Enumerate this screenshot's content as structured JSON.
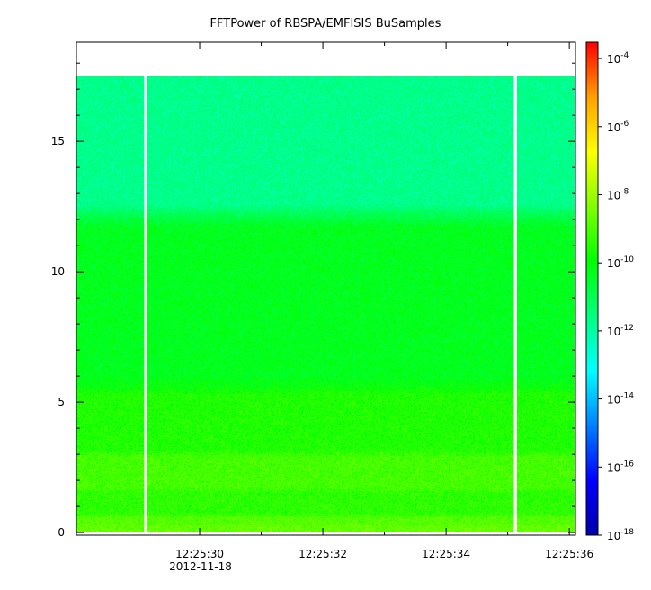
{
  "chart_data": {
    "type": "heatmap",
    "title": "FFTPower of RBSPA/EMFISIS  BuSamples",
    "xlabel": "",
    "ylabel": "",
    "x_axis": {
      "type": "time",
      "start": "12:25:28.0",
      "end": "12:25:36.1",
      "ticks": [
        {
          "value": 30,
          "label": "12:25:30"
        },
        {
          "value": 32,
          "label": "12:25:32"
        },
        {
          "value": 34,
          "label": "12:25:34"
        },
        {
          "value": 36,
          "label": "12:25:36"
        }
      ],
      "minor_ticks": [
        29,
        31,
        33,
        35
      ],
      "date_label": "2012-11-18"
    },
    "y_axis": {
      "ylim": [
        -0.1,
        18.8
      ],
      "ticks": [
        0,
        5,
        10,
        15
      ],
      "minor_ticks": [
        1,
        2,
        3,
        4,
        6,
        7,
        8,
        9,
        11,
        12,
        13,
        14,
        16,
        17,
        18
      ]
    },
    "colorbar": {
      "scale": "log",
      "range": [
        1e-18,
        0.0003
      ],
      "colormap": [
        "#0000aa",
        "#0000ff",
        "#0080ff",
        "#00ffff",
        "#00ff80",
        "#00ff00",
        "#80ff00",
        "#ffff00",
        "#ffa000",
        "#ff0000"
      ],
      "ticks": [
        {
          "base": "10",
          "exp": "-18",
          "value": -18
        },
        {
          "base": "10",
          "exp": "-16",
          "value": -16
        },
        {
          "base": "10",
          "exp": "-14",
          "value": -14
        },
        {
          "base": "10",
          "exp": "-12",
          "value": -12
        },
        {
          "base": "10",
          "exp": "-10",
          "value": -10
        },
        {
          "base": "10",
          "exp": "-8",
          "value": -8
        },
        {
          "base": "10",
          "exp": "-6",
          "value": -6
        },
        {
          "base": "10",
          "exp": "-4",
          "value": -4
        }
      ]
    },
    "spectrogram": {
      "data_extent_y": [
        0,
        17.5
      ],
      "data_gaps": [
        {
          "start": 29.1,
          "end": 29.15
        },
        {
          "start": 35.1,
          "end": 35.15
        }
      ],
      "bands": [
        {
          "y0": 0,
          "y1": 0.25,
          "log10_power": -8.7
        },
        {
          "y0": 0.25,
          "y1": 0.6,
          "log10_power": -8.9
        },
        {
          "y0": 0.6,
          "y1": 1.6,
          "log10_power": -9.4
        },
        {
          "y0": 1.6,
          "y1": 3.0,
          "log10_power": -9.1
        },
        {
          "y0": 3.0,
          "y1": 5.5,
          "log10_power": -9.6
        },
        {
          "y0": 5.5,
          "y1": 12.2,
          "log10_power": -10.3
        },
        {
          "y0": 12.2,
          "y1": 17.5,
          "log10_power": -11.7
        }
      ]
    }
  }
}
